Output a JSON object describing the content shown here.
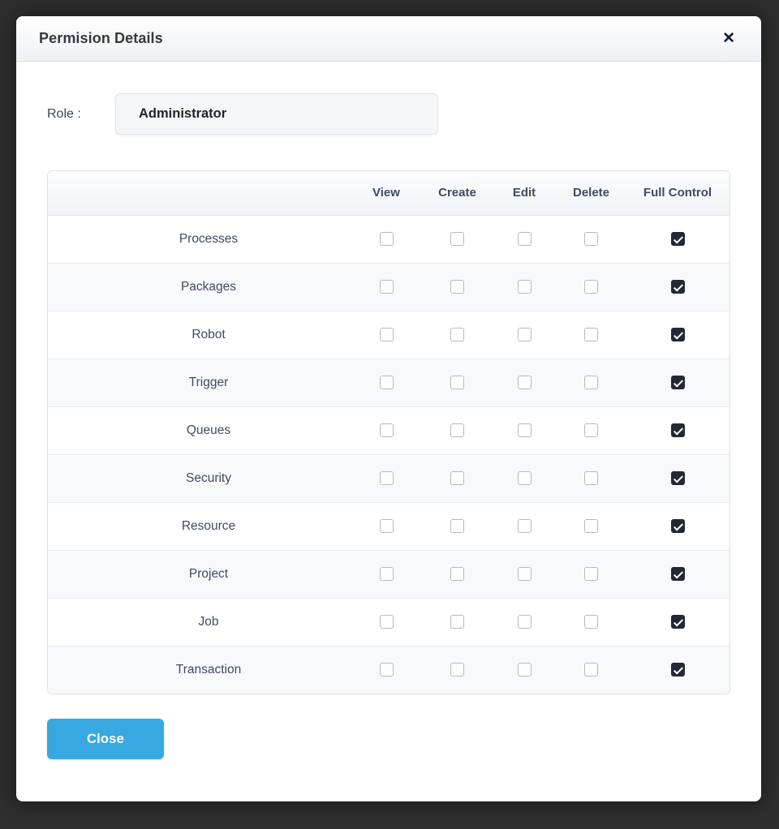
{
  "dialog": {
    "title": "Permision Details",
    "close_glyph": "✕"
  },
  "role": {
    "label": "Role :",
    "value": "Administrator"
  },
  "table": {
    "columns": [
      "View",
      "Create",
      "Edit",
      "Delete",
      "Full Control"
    ],
    "rows": [
      {
        "label": "Processes",
        "checks": [
          false,
          false,
          false,
          false,
          true
        ]
      },
      {
        "label": "Packages",
        "checks": [
          false,
          false,
          false,
          false,
          true
        ]
      },
      {
        "label": "Robot",
        "checks": [
          false,
          false,
          false,
          false,
          true
        ]
      },
      {
        "label": "Trigger",
        "checks": [
          false,
          false,
          false,
          false,
          true
        ]
      },
      {
        "label": "Queues",
        "checks": [
          false,
          false,
          false,
          false,
          true
        ]
      },
      {
        "label": "Security",
        "checks": [
          false,
          false,
          false,
          false,
          true
        ]
      },
      {
        "label": "Resource",
        "checks": [
          false,
          false,
          false,
          false,
          true
        ]
      },
      {
        "label": "Project",
        "checks": [
          false,
          false,
          false,
          false,
          true
        ]
      },
      {
        "label": "Job",
        "checks": [
          false,
          false,
          false,
          false,
          true
        ]
      },
      {
        "label": "Transaction",
        "checks": [
          false,
          false,
          false,
          false,
          true
        ]
      }
    ]
  },
  "footer": {
    "close_label": "Close"
  },
  "colors": {
    "accent_blue": "#38a9e0",
    "checked_box": "#232834",
    "overlay_background": "#2e2e2e"
  }
}
